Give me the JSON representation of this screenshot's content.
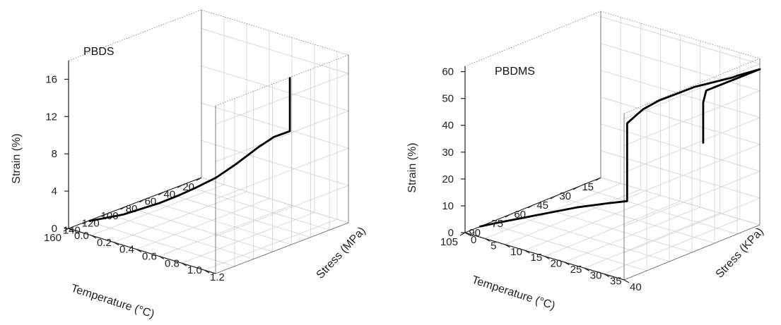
{
  "chart_data": [
    {
      "type": "line",
      "annotation": "PBDS",
      "xlabel": "Temperature (°C)",
      "ylabel": "Stress (MPa)",
      "zlabel": "Strain (%)",
      "x_ticks": [
        "20",
        "40",
        "60",
        "80",
        "100",
        "120",
        "140",
        "160"
      ],
      "y_ticks": [
        "0.0",
        "0.2",
        "0.4",
        "0.6",
        "0.8",
        "1.0",
        "1.2"
      ],
      "z_ticks": [
        "0",
        "4",
        "8",
        "12",
        "16"
      ],
      "xlim": [
        20,
        160
      ],
      "ylim": [
        0,
        1.3
      ],
      "zlim": [
        0,
        18
      ],
      "grid": true,
      "series": [
        {
          "x": [
            140,
            120,
            100,
            90,
            80,
            70,
            60,
            50,
            45,
            40,
            40,
            40
          ],
          "y": [
            0.02,
            0.15,
            0.3,
            0.38,
            0.46,
            0.55,
            0.65,
            0.76,
            0.85,
            0.95,
            0.95,
            0.95
          ],
          "z": [
            0.1,
            0.5,
            1.5,
            2.2,
            3.0,
            4.0,
            5.5,
            7.3,
            8.5,
            9.3,
            12,
            15
          ]
        }
      ]
    },
    {
      "type": "line",
      "annotation": "PBDMS",
      "xlabel": "Temperature (°C)",
      "ylabel": "Stress (KPa)",
      "zlabel": "Strain (%)",
      "x_ticks": [
        "15",
        "30",
        "45",
        "60",
        "75",
        "90",
        "105"
      ],
      "y_ticks": [
        "0",
        "5",
        "10",
        "15",
        "20",
        "25",
        "30",
        "35",
        "40"
      ],
      "z_ticks": [
        "0",
        "10",
        "20",
        "30",
        "40",
        "50",
        "60"
      ],
      "xlim": [
        15,
        105
      ],
      "ylim": [
        0,
        40
      ],
      "zlim": [
        0,
        62
      ],
      "grid": true,
      "series": [
        {
          "x": [
            95,
            90,
            80,
            70,
            60,
            50,
            45,
            45,
            45,
            45,
            45,
            45,
            45,
            40,
            35,
            30,
            30,
            15,
            40,
            42,
            42,
            42,
            42
          ],
          "y": [
            0,
            2,
            5,
            8,
            11,
            15,
            18,
            18,
            18,
            18,
            22,
            26,
            30,
            33,
            36,
            39,
            40,
            40,
            36,
            36,
            36,
            36,
            36
          ],
          "z": [
            0,
            1,
            2,
            3,
            4,
            5,
            6,
            14,
            25,
            35,
            42,
            47,
            51,
            54,
            56,
            58,
            59,
            58,
            54,
            50,
            45,
            40,
            35
          ]
        }
      ]
    }
  ]
}
